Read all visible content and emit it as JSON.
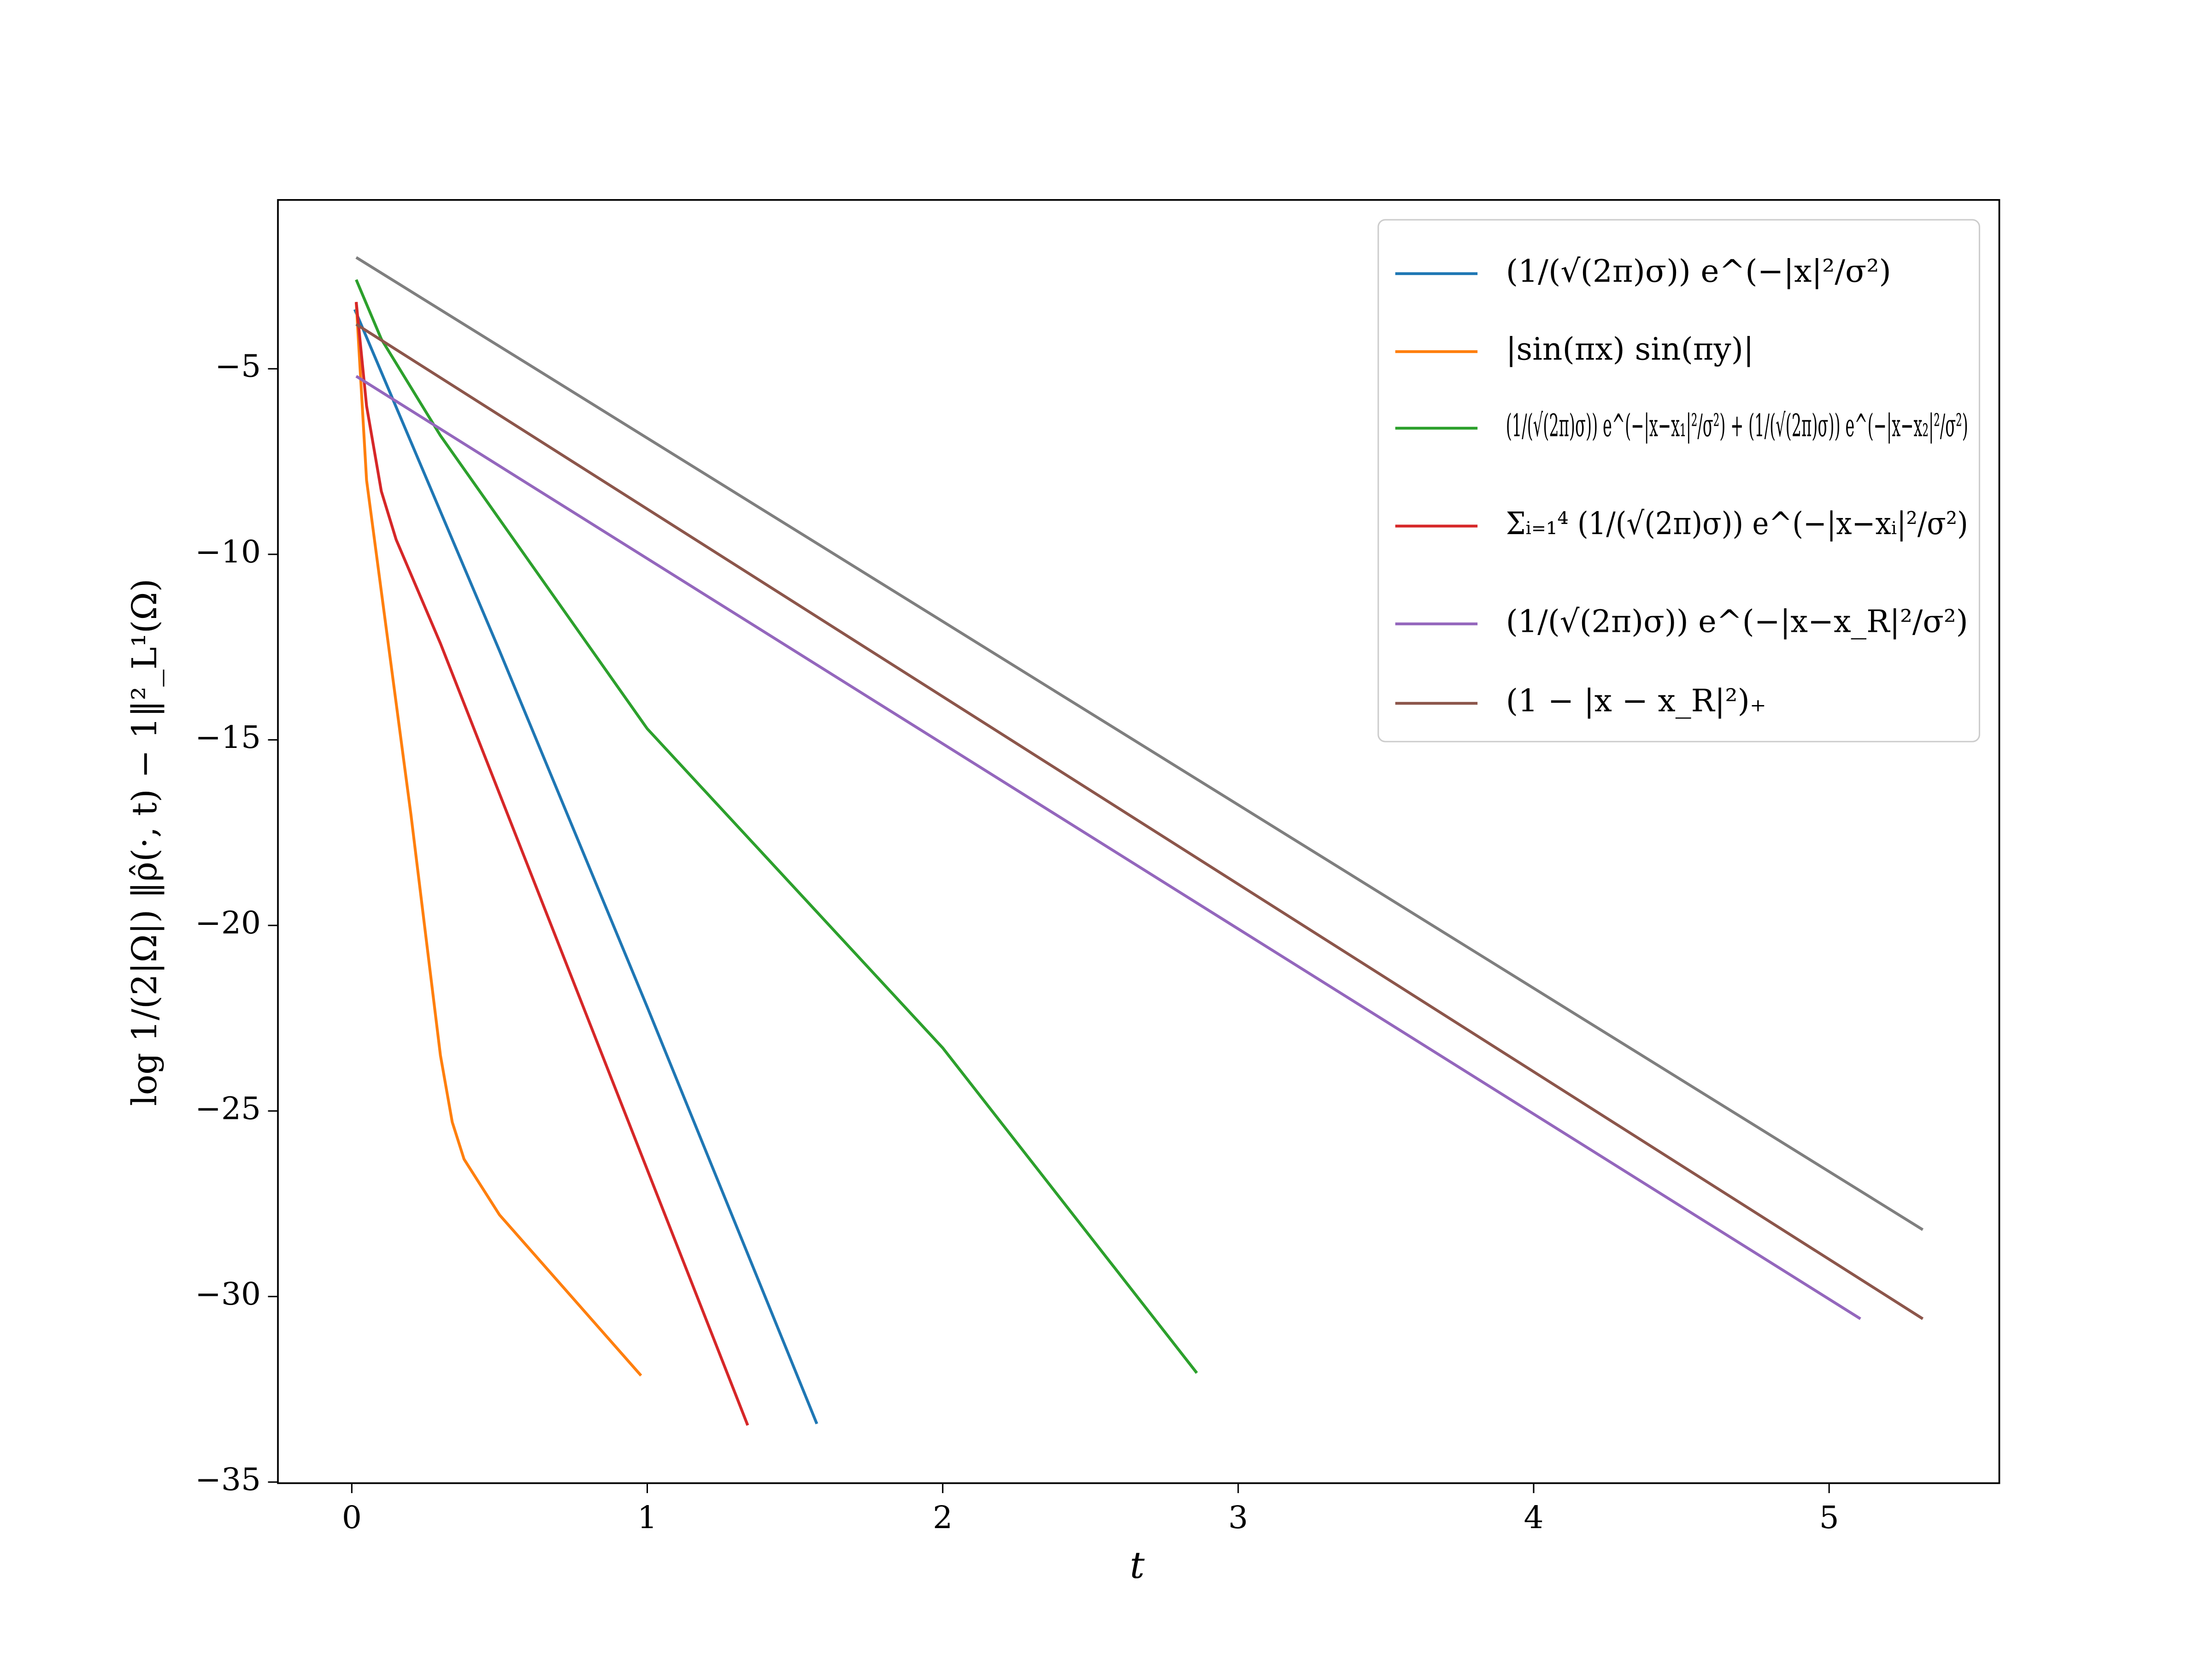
{
  "chart_data": {
    "type": "line",
    "xlabel": "t",
    "ylabel": "log 1/(2|Ω|) ‖ρ̂(·, t) − 1‖²_L¹(Ω)",
    "xlim": [
      -0.25,
      5.576
    ],
    "ylim": [
      -35.03,
      -0.45
    ],
    "xticks": [
      0,
      1,
      2,
      3,
      4,
      5
    ],
    "yticks": [
      {
        "value": -5,
        "label": "−5"
      },
      {
        "value": -10,
        "label": "−10"
      },
      {
        "value": -15,
        "label": "−15"
      },
      {
        "value": -20,
        "label": "−20"
      },
      {
        "value": -25,
        "label": "−25"
      },
      {
        "value": -30,
        "label": "−30"
      },
      {
        "value": -35,
        "label": "−35"
      }
    ],
    "legend": "upper right",
    "series": [
      {
        "name": "(1/(√(2π)σ)) e^(−|x|²/σ²)",
        "color": "#1f77b4",
        "x": [
          0.01,
          0.5,
          1.0,
          1.574
        ],
        "values": [
          -3.4,
          -12.6,
          -22.2,
          -33.43
        ]
      },
      {
        "name": "|sin(πx) sin(πy)|",
        "color": "#ff7f0e",
        "x": [
          0.015,
          0.05,
          0.2,
          0.3,
          0.34,
          0.38,
          0.5,
          0.979
        ],
        "values": [
          -3.2,
          -8,
          -17,
          -23.5,
          -25.3,
          -26.3,
          -27.8,
          -32.13
        ]
      },
      {
        "name": "(1/(√(2π)σ)) e^(−|x−x₁|²/σ²) + (1/(√(2π)σ)) e^(−|x−x₂|²/σ²)",
        "color": "#2ca02c",
        "x": [
          0.015,
          0.1,
          0.3,
          1.0,
          2.0,
          2.86
        ],
        "values": [
          -2.6,
          -4.2,
          -6.8,
          -14.7,
          -23.3,
          -32.06
        ]
      },
      {
        "name": "Σᵢ₌₁⁴ (1/(√(2π)σ)) e^(−|x−xᵢ|²/σ²)",
        "color": "#d62728",
        "x": [
          0.015,
          0.05,
          0.1,
          0.15,
          0.3,
          1.34
        ],
        "values": [
          -3.2,
          -6,
          -8.3,
          -9.6,
          -12.4,
          -33.47
        ]
      },
      {
        "name": "(1/(√(2π)σ)) e^(−|x−x_R|²/σ²)",
        "color": "#9467bd",
        "x": [
          0.015,
          5.106
        ],
        "values": [
          -5.2,
          -30.6
        ]
      },
      {
        "name": "(1 − |x − x_R|²)₊",
        "color": "#8c564b",
        "x": [
          0.015,
          5.317
        ],
        "values": [
          -3.8,
          -30.6
        ]
      },
      {
        "color": "#7f7f7f",
        "x": [
          0.015,
          5.317
        ],
        "values": [
          -2.0,
          -28.2
        ]
      }
    ]
  }
}
